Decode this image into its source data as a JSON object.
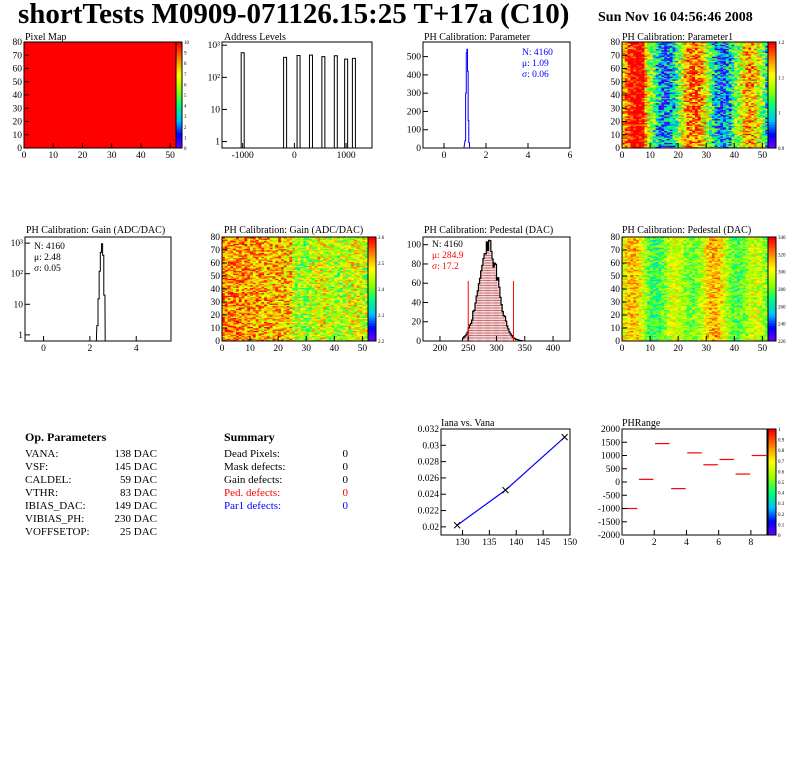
{
  "header": {
    "title": "shortTests M0909-071126.15:25 T+17a (C10)",
    "date": "Sun Nov 16 04:56:46 2008"
  },
  "colors": {
    "red": "#ff0000",
    "blue": "#0000ff",
    "black": "#000000",
    "pedestal_fill": "#8b0000"
  },
  "chart_data": [
    {
      "type": "heatmap",
      "title": "Pixel Map",
      "xticks": [
        "0",
        "10",
        "20",
        "30",
        "40",
        "50"
      ],
      "yticks": [
        "0",
        "10",
        "20",
        "30",
        "40",
        "50",
        "60",
        "70",
        "80"
      ],
      "xlim": [
        0,
        52
      ],
      "ylim": [
        0,
        80
      ],
      "zlim": [
        0,
        10
      ],
      "zticks": [
        "0",
        "1",
        "2",
        "3",
        "4",
        "5",
        "6",
        "7",
        "8",
        "9",
        "10"
      ],
      "uniform_value": 10
    },
    {
      "type": "bar",
      "title": "Address Levels",
      "log_y": true,
      "xticks": [
        "-1000",
        "0",
        "1000"
      ],
      "xlim": [
        -1400,
        1500
      ],
      "yticks": [
        "1",
        "10",
        "10²",
        "10³"
      ],
      "peaks_x": [
        -1000,
        -180,
        80,
        320,
        560,
        800,
        1000,
        1150
      ],
      "peaks_y": [
        580,
        420,
        480,
        490,
        440,
        470,
        370,
        390
      ]
    },
    {
      "type": "bar",
      "title": "PH Calibration: Parameter",
      "xticks": [
        "0",
        "2",
        "4",
        "6"
      ],
      "xlim": [
        -1,
        6
      ],
      "yticks": [
        "0",
        "100",
        "200",
        "300",
        "400",
        "500"
      ],
      "ylim": [
        0,
        580
      ],
      "stats": {
        "n": "N: 4160",
        "mean": "μ: 1.09",
        "sigma": "σ: 0.06"
      },
      "peak_x": [
        1.0,
        1.03,
        1.06,
        1.09,
        1.12,
        1.15,
        1.18
      ],
      "peak_y": [
        40,
        300,
        520,
        540,
        420,
        150,
        30
      ]
    },
    {
      "type": "heatmap",
      "title": "PH Calibration: Parameter1",
      "xticks": [
        "0",
        "10",
        "20",
        "30",
        "40",
        "50"
      ],
      "yticks": [
        "0",
        "10",
        "20",
        "30",
        "40",
        "50",
        "60",
        "70",
        "80"
      ],
      "zticks": [
        "0.9",
        "1",
        "1.1",
        "1.2"
      ],
      "zlim": [
        0.85,
        1.25
      ]
    },
    {
      "type": "bar",
      "title": "PH Calibration: Gain (ADC/DAC)",
      "log_y": true,
      "xticks": [
        "0",
        "2",
        "4"
      ],
      "xlim": [
        -0.8,
        5.5
      ],
      "yticks": [
        "1",
        "10",
        "10²",
        "10³"
      ],
      "stats": {
        "n": "N: 4160",
        "mean": "μ: 2.48",
        "sigma": "σ: 0.05"
      },
      "peak_x": [
        2.3,
        2.35,
        2.4,
        2.45,
        2.5,
        2.55,
        2.6
      ],
      "peak_y": [
        2,
        15,
        120,
        500,
        950,
        400,
        20
      ]
    },
    {
      "type": "heatmap",
      "title": "PH Calibration: Gain (ADC/DAC)",
      "xticks": [
        "0",
        "10",
        "20",
        "30",
        "40",
        "50"
      ],
      "yticks": [
        "0",
        "10",
        "20",
        "30",
        "40",
        "50",
        "60",
        "70",
        "80"
      ],
      "zticks": [
        "2.2",
        "2.3",
        "2.4",
        "2.5",
        "2.6"
      ],
      "zlim": [
        2.15,
        2.65
      ]
    },
    {
      "type": "bar",
      "title": "PH Calibration: Pedestal (DAC)",
      "xticks": [
        "200",
        "250",
        "300",
        "350",
        "400"
      ],
      "xlim": [
        170,
        430
      ],
      "yticks": [
        "0",
        "20",
        "40",
        "60",
        "80",
        "100"
      ],
      "ylim": [
        0,
        108
      ],
      "stats": {
        "n": "N: 4160",
        "mean": "μ: 284.9",
        "sigma": "σ: 17.2"
      },
      "mean": 284.9,
      "sigma": 17.2,
      "peak_count": 98,
      "cut_lines": [
        250,
        330
      ]
    },
    {
      "type": "heatmap",
      "title": "PH Calibration: Pedestal (DAC)",
      "xticks": [
        "0",
        "10",
        "20",
        "30",
        "40",
        "50"
      ],
      "yticks": [
        "0",
        "10",
        "20",
        "30",
        "40",
        "50",
        "60",
        "70",
        "80"
      ],
      "zticks": [
        "220",
        "240",
        "260",
        "280",
        "300",
        "320",
        "340"
      ],
      "zlim": [
        210,
        350
      ]
    },
    {
      "type": "line",
      "title": "Iana vs. Vana",
      "x": [
        129,
        138,
        149
      ],
      "y": [
        0.0202,
        0.0245,
        0.031
      ],
      "xticks": [
        "130",
        "135",
        "140",
        "145",
        "150"
      ],
      "xlim": [
        126,
        150
      ],
      "yticks": [
        "0.02",
        "0.022",
        "0.024",
        "0.026",
        "0.028",
        "0.03",
        "0.032"
      ],
      "ylim": [
        0.019,
        0.032
      ]
    },
    {
      "type": "scatter",
      "title": "PHRange",
      "x": [
        0.5,
        1.5,
        2.5,
        3.5,
        4.5,
        5.5,
        6.5,
        7.5,
        8.5
      ],
      "y": [
        -1000,
        100,
        1450,
        -250,
        1100,
        650,
        850,
        300,
        1000
      ],
      "xticks": [
        "0",
        "2",
        "4",
        "6",
        "8"
      ],
      "xlim": [
        0,
        9
      ],
      "yticks": [
        "-2000",
        "-1500",
        "-1000",
        "-500",
        "0",
        "500",
        "1000",
        "1500",
        "2000"
      ],
      "ylim": [
        -2000,
        2000
      ],
      "zticks": [
        "0",
        "0.1",
        "0.2",
        "0.3",
        "0.4",
        "0.5",
        "0.6",
        "0.7",
        "0.8",
        "0.9",
        "1"
      ]
    }
  ],
  "op_parameters": {
    "heading": "Op. Parameters",
    "rows": [
      {
        "k": "VANA:",
        "v": "138 DAC"
      },
      {
        "k": "VSF:",
        "v": "145 DAC"
      },
      {
        "k": "CALDEL:",
        "v": "59 DAC"
      },
      {
        "k": "VTHR:",
        "v": "83 DAC"
      },
      {
        "k": "IBIAS_DAC:",
        "v": "149 DAC"
      },
      {
        "k": "VIBIAS_PH:",
        "v": "230 DAC"
      },
      {
        "k": "VOFFSETOP:",
        "v": "25 DAC"
      }
    ]
  },
  "summary": {
    "heading": "Summary",
    "rows": [
      {
        "k": "Dead Pixels:",
        "v": "0",
        "color": "#000000"
      },
      {
        "k": "Mask defects:",
        "v": "0",
        "color": "#000000"
      },
      {
        "k": "Gain defects:",
        "v": "0",
        "color": "#000000"
      },
      {
        "k": "Ped. defects:",
        "v": "0",
        "color": "#ff0000"
      },
      {
        "k": "Par1 defects:",
        "v": "0",
        "color": "#0000ff"
      }
    ]
  }
}
